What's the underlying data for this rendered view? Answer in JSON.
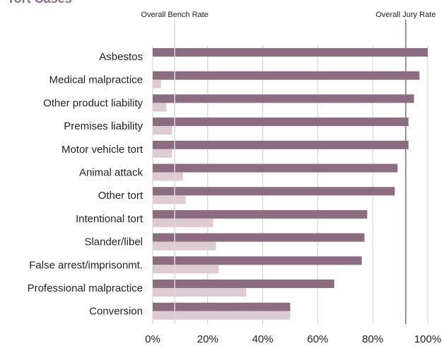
{
  "chart_data": {
    "type": "bar",
    "orientation": "horizontal",
    "title": "Tort Cases",
    "categories": [
      "Asbestos",
      "Medical malpractice",
      "Other product liability",
      "Premises liability",
      "Motor vehicle tort",
      "Animal attack",
      "Other tort",
      "Intentional tort",
      "Slander/libel",
      "False arrest/imprisonmt.",
      "Professional malpractice",
      "Conversion"
    ],
    "series": [
      {
        "values": [
          100,
          97,
          95,
          93,
          93,
          89,
          88,
          78,
          77,
          76,
          66,
          50
        ]
      },
      {
        "values": [
          0,
          3,
          5,
          7,
          7,
          11,
          12,
          22,
          23,
          24,
          34,
          50
        ]
      }
    ],
    "colors": {
      "jury": "#8c6d80",
      "bench": "#dccbd3",
      "grid": "#d0d0d0",
      "title": "#8c6d80"
    },
    "xlim": [
      0,
      100
    ],
    "x_ticks": [
      "0%",
      "20%",
      "40%",
      "60%",
      "80%",
      "100%"
    ],
    "grid": true,
    "reference_lines": [
      {
        "label": "Overall Bench Rate",
        "value": 8,
        "color": "#d9d9d9"
      },
      {
        "label": "Overall Jury Rate",
        "value": 92,
        "color": "#8c6d80"
      }
    ]
  }
}
